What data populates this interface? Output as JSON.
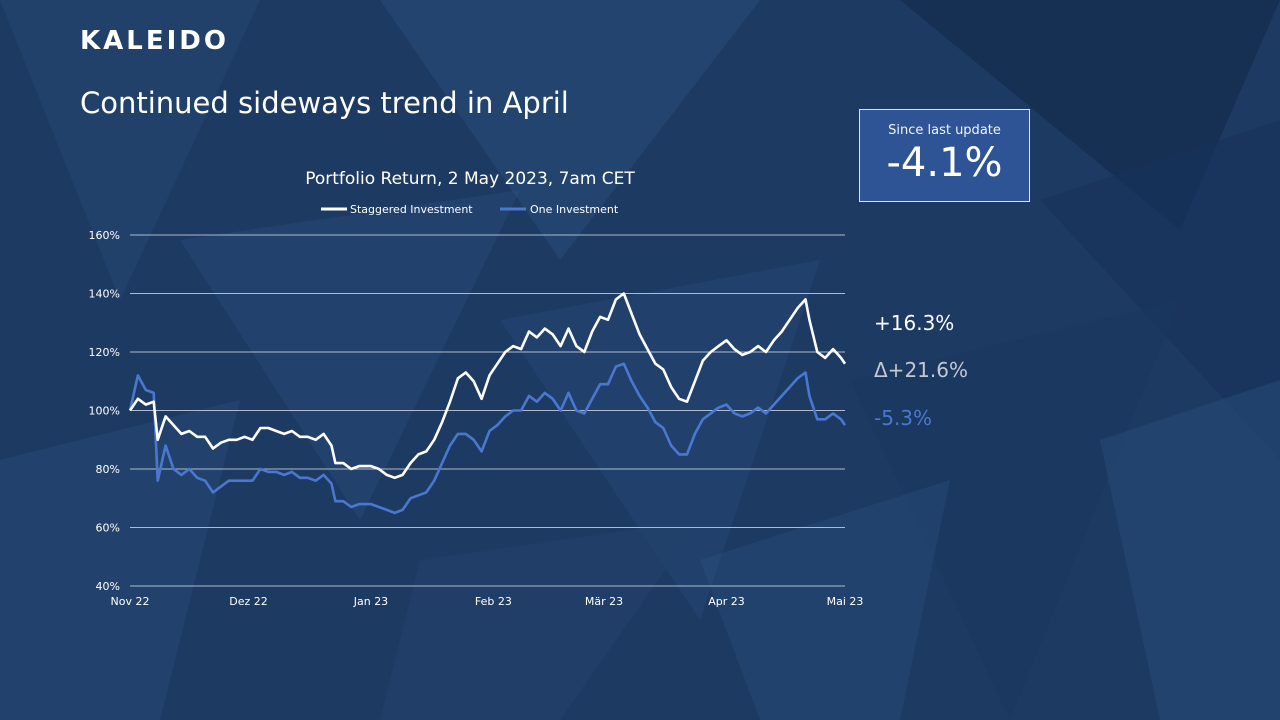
{
  "logo": "KALEIDO",
  "page_title": "Continued sideways trend in April",
  "kpi": {
    "label": "Since last update",
    "value": "-4.1%"
  },
  "side_values": {
    "staggered": "+16.3%",
    "delta": "Δ+21.6%",
    "one": "-5.3%"
  },
  "colors": {
    "background": "#1d3a63",
    "staggered": "#ffffff",
    "one": "#4a78d0",
    "kpi_box": "#2e5495",
    "delta": "#c3c9d3",
    "one_text": "#4a78d0"
  },
  "chart_data": {
    "type": "line",
    "title": "Portfolio Return, 2 May 2023, 7am CET",
    "xlabel": "",
    "ylabel": "",
    "ylim": [
      40,
      160
    ],
    "yticks": [
      40,
      60,
      80,
      100,
      120,
      140,
      160
    ],
    "ytick_labels": [
      "40%",
      "60%",
      "80%",
      "100%",
      "120%",
      "140%",
      "160%"
    ],
    "xlim": [
      "2022-11-01",
      "2023-05-01"
    ],
    "xticks": [
      "2022-11-01",
      "2022-12-01",
      "2023-01-01",
      "2023-02-01",
      "2023-03-01",
      "2023-04-01",
      "2023-05-01"
    ],
    "xtick_labels": [
      "Nov 22",
      "Dez 22",
      "Jan 23",
      "Feb 23",
      "Mär 23",
      "Apr 23",
      "Mai 23"
    ],
    "grid": true,
    "legend": "top-center",
    "series": [
      {
        "name": "Staggered Investment",
        "color": "#ffffff",
        "points": [
          [
            "2022-11-01",
            100
          ],
          [
            "2022-11-03",
            104
          ],
          [
            "2022-11-05",
            102
          ],
          [
            "2022-11-07",
            103
          ],
          [
            "2022-11-08",
            90
          ],
          [
            "2022-11-10",
            98
          ],
          [
            "2022-11-12",
            95
          ],
          [
            "2022-11-14",
            92
          ],
          [
            "2022-11-16",
            93
          ],
          [
            "2022-11-18",
            91
          ],
          [
            "2022-11-20",
            91
          ],
          [
            "2022-11-22",
            87
          ],
          [
            "2022-11-24",
            89
          ],
          [
            "2022-11-26",
            90
          ],
          [
            "2022-11-28",
            90
          ],
          [
            "2022-11-30",
            91
          ],
          [
            "2022-12-02",
            90
          ],
          [
            "2022-12-04",
            94
          ],
          [
            "2022-12-06",
            94
          ],
          [
            "2022-12-08",
            93
          ],
          [
            "2022-12-10",
            92
          ],
          [
            "2022-12-12",
            93
          ],
          [
            "2022-12-14",
            91
          ],
          [
            "2022-12-16",
            91
          ],
          [
            "2022-12-18",
            90
          ],
          [
            "2022-12-20",
            92
          ],
          [
            "2022-12-22",
            88
          ],
          [
            "2022-12-23",
            82
          ],
          [
            "2022-12-25",
            82
          ],
          [
            "2022-12-27",
            80
          ],
          [
            "2022-12-29",
            81
          ],
          [
            "2023-01-01",
            81
          ],
          [
            "2023-01-03",
            80
          ],
          [
            "2023-01-05",
            78
          ],
          [
            "2023-01-07",
            77
          ],
          [
            "2023-01-09",
            78
          ],
          [
            "2023-01-11",
            82
          ],
          [
            "2023-01-13",
            85
          ],
          [
            "2023-01-15",
            86
          ],
          [
            "2023-01-17",
            90
          ],
          [
            "2023-01-19",
            96
          ],
          [
            "2023-01-21",
            103
          ],
          [
            "2023-01-23",
            111
          ],
          [
            "2023-01-25",
            113
          ],
          [
            "2023-01-27",
            110
          ],
          [
            "2023-01-29",
            104
          ],
          [
            "2023-01-31",
            112
          ],
          [
            "2023-02-02",
            116
          ],
          [
            "2023-02-04",
            120
          ],
          [
            "2023-02-06",
            122
          ],
          [
            "2023-02-08",
            121
          ],
          [
            "2023-02-10",
            127
          ],
          [
            "2023-02-12",
            125
          ],
          [
            "2023-02-14",
            128
          ],
          [
            "2023-02-16",
            126
          ],
          [
            "2023-02-18",
            122
          ],
          [
            "2023-02-20",
            128
          ],
          [
            "2023-02-22",
            122
          ],
          [
            "2023-02-24",
            120
          ],
          [
            "2023-02-26",
            127
          ],
          [
            "2023-02-28",
            132
          ],
          [
            "2023-03-02",
            131
          ],
          [
            "2023-03-04",
            138
          ],
          [
            "2023-03-06",
            140
          ],
          [
            "2023-03-08",
            133
          ],
          [
            "2023-03-10",
            126
          ],
          [
            "2023-03-12",
            121
          ],
          [
            "2023-03-14",
            116
          ],
          [
            "2023-03-16",
            114
          ],
          [
            "2023-03-18",
            108
          ],
          [
            "2023-03-20",
            104
          ],
          [
            "2023-03-22",
            103
          ],
          [
            "2023-03-24",
            110
          ],
          [
            "2023-03-26",
            117
          ],
          [
            "2023-03-28",
            120
          ],
          [
            "2023-03-30",
            122
          ],
          [
            "2023-04-01",
            124
          ],
          [
            "2023-04-03",
            121
          ],
          [
            "2023-04-05",
            119
          ],
          [
            "2023-04-07",
            120
          ],
          [
            "2023-04-09",
            122
          ],
          [
            "2023-04-11",
            120
          ],
          [
            "2023-04-13",
            124
          ],
          [
            "2023-04-15",
            127
          ],
          [
            "2023-04-17",
            131
          ],
          [
            "2023-04-19",
            135
          ],
          [
            "2023-04-21",
            138
          ],
          [
            "2023-04-22",
            131
          ],
          [
            "2023-04-24",
            120
          ],
          [
            "2023-04-26",
            118
          ],
          [
            "2023-04-28",
            121
          ],
          [
            "2023-04-30",
            118
          ],
          [
            "2023-05-01",
            116
          ]
        ]
      },
      {
        "name": "One Investment",
        "color": "#4a78d0",
        "points": [
          [
            "2022-11-01",
            100
          ],
          [
            "2022-11-03",
            112
          ],
          [
            "2022-11-05",
            107
          ],
          [
            "2022-11-07",
            106
          ],
          [
            "2022-11-08",
            76
          ],
          [
            "2022-11-10",
            88
          ],
          [
            "2022-11-12",
            80
          ],
          [
            "2022-11-14",
            78
          ],
          [
            "2022-11-16",
            80
          ],
          [
            "2022-11-18",
            77
          ],
          [
            "2022-11-20",
            76
          ],
          [
            "2022-11-22",
            72
          ],
          [
            "2022-11-24",
            74
          ],
          [
            "2022-11-26",
            76
          ],
          [
            "2022-11-28",
            76
          ],
          [
            "2022-11-30",
            76
          ],
          [
            "2022-12-02",
            76
          ],
          [
            "2022-12-04",
            80
          ],
          [
            "2022-12-06",
            79
          ],
          [
            "2022-12-08",
            79
          ],
          [
            "2022-12-10",
            78
          ],
          [
            "2022-12-12",
            79
          ],
          [
            "2022-12-14",
            77
          ],
          [
            "2022-12-16",
            77
          ],
          [
            "2022-12-18",
            76
          ],
          [
            "2022-12-20",
            78
          ],
          [
            "2022-12-22",
            75
          ],
          [
            "2022-12-23",
            69
          ],
          [
            "2022-12-25",
            69
          ],
          [
            "2022-12-27",
            67
          ],
          [
            "2022-12-29",
            68
          ],
          [
            "2023-01-01",
            68
          ],
          [
            "2023-01-03",
            67
          ],
          [
            "2023-01-05",
            66
          ],
          [
            "2023-01-07",
            65
          ],
          [
            "2023-01-09",
            66
          ],
          [
            "2023-01-11",
            70
          ],
          [
            "2023-01-13",
            71
          ],
          [
            "2023-01-15",
            72
          ],
          [
            "2023-01-17",
            76
          ],
          [
            "2023-01-19",
            82
          ],
          [
            "2023-01-21",
            88
          ],
          [
            "2023-01-23",
            92
          ],
          [
            "2023-01-25",
            92
          ],
          [
            "2023-01-27",
            90
          ],
          [
            "2023-01-29",
            86
          ],
          [
            "2023-01-31",
            93
          ],
          [
            "2023-02-02",
            95
          ],
          [
            "2023-02-04",
            98
          ],
          [
            "2023-02-06",
            100
          ],
          [
            "2023-02-08",
            100
          ],
          [
            "2023-02-10",
            105
          ],
          [
            "2023-02-12",
            103
          ],
          [
            "2023-02-14",
            106
          ],
          [
            "2023-02-16",
            104
          ],
          [
            "2023-02-18",
            100
          ],
          [
            "2023-02-20",
            106
          ],
          [
            "2023-02-22",
            100
          ],
          [
            "2023-02-24",
            99
          ],
          [
            "2023-02-26",
            104
          ],
          [
            "2023-02-28",
            109
          ],
          [
            "2023-03-02",
            109
          ],
          [
            "2023-03-04",
            115
          ],
          [
            "2023-03-06",
            116
          ],
          [
            "2023-03-08",
            110
          ],
          [
            "2023-03-10",
            105
          ],
          [
            "2023-03-12",
            101
          ],
          [
            "2023-03-14",
            96
          ],
          [
            "2023-03-16",
            94
          ],
          [
            "2023-03-18",
            88
          ],
          [
            "2023-03-20",
            85
          ],
          [
            "2023-03-22",
            85
          ],
          [
            "2023-03-24",
            92
          ],
          [
            "2023-03-26",
            97
          ],
          [
            "2023-03-28",
            99
          ],
          [
            "2023-03-30",
            101
          ],
          [
            "2023-04-01",
            102
          ],
          [
            "2023-04-03",
            99
          ],
          [
            "2023-04-05",
            98
          ],
          [
            "2023-04-07",
            99
          ],
          [
            "2023-04-09",
            101
          ],
          [
            "2023-04-11",
            99
          ],
          [
            "2023-04-13",
            102
          ],
          [
            "2023-04-15",
            105
          ],
          [
            "2023-04-17",
            108
          ],
          [
            "2023-04-19",
            111
          ],
          [
            "2023-04-21",
            113
          ],
          [
            "2023-04-22",
            105
          ],
          [
            "2023-04-24",
            97
          ],
          [
            "2023-04-26",
            97
          ],
          [
            "2023-04-28",
            99
          ],
          [
            "2023-04-30",
            97
          ],
          [
            "2023-05-01",
            95
          ]
        ]
      }
    ]
  }
}
